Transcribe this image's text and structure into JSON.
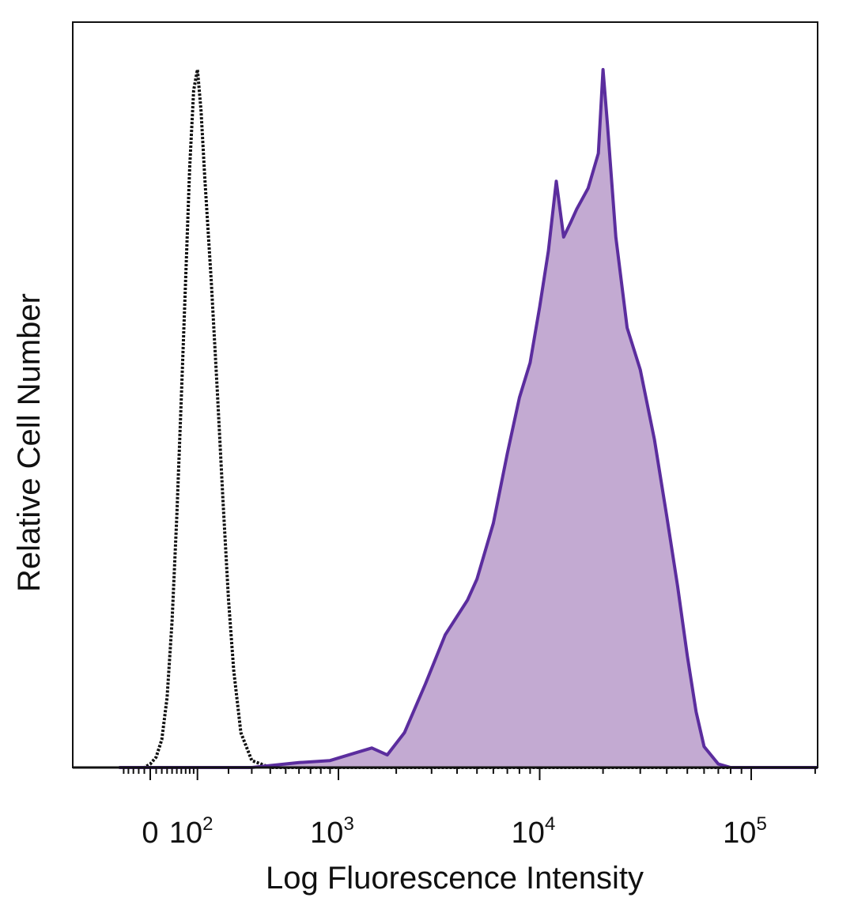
{
  "chart_data": {
    "type": "area",
    "title": "",
    "xlabel": "Log Fluorescence Intensity",
    "ylabel": "Relative Cell Number",
    "x_scale": "biexponential",
    "xlim": [
      -60,
      250000
    ],
    "ylim": [
      0,
      100
    ],
    "grid": false,
    "legend": "none",
    "x_ticks": [
      {
        "value": 0,
        "base": "0",
        "exp": ""
      },
      {
        "value": 100,
        "base": "10",
        "exp": "2"
      },
      {
        "value": 1000,
        "base": "10",
        "exp": "3"
      },
      {
        "value": 10000,
        "base": "10",
        "exp": "4"
      },
      {
        "value": 100000,
        "base": "10",
        "exp": "5"
      }
    ],
    "series": [
      {
        "style": "dotted-outline",
        "color": "#111111",
        "points": [
          [
            -60,
            0
          ],
          [
            -10,
            0
          ],
          [
            0,
            0.5
          ],
          [
            10,
            1.5
          ],
          [
            20,
            4
          ],
          [
            30,
            10
          ],
          [
            40,
            21
          ],
          [
            50,
            36
          ],
          [
            60,
            53
          ],
          [
            70,
            70
          ],
          [
            80,
            86
          ],
          [
            90,
            97
          ],
          [
            100,
            100
          ],
          [
            110,
            94
          ],
          [
            120,
            85
          ],
          [
            140,
            70
          ],
          [
            160,
            54
          ],
          [
            180,
            38
          ],
          [
            200,
            24
          ],
          [
            220,
            14
          ],
          [
            250,
            5
          ],
          [
            300,
            1
          ],
          [
            400,
            0
          ],
          [
            250000,
            0
          ]
        ]
      },
      {
        "style": "filled",
        "color": "#5b2d9e",
        "fill": "#c3aad2",
        "points": [
          [
            -60,
            0
          ],
          [
            300,
            0
          ],
          [
            600,
            0.7
          ],
          [
            900,
            1
          ],
          [
            1200,
            2
          ],
          [
            1500,
            2.8
          ],
          [
            1800,
            1.8
          ],
          [
            2200,
            5
          ],
          [
            2800,
            12
          ],
          [
            3500,
            19
          ],
          [
            4500,
            24
          ],
          [
            5000,
            27
          ],
          [
            6000,
            35
          ],
          [
            7000,
            45
          ],
          [
            8000,
            53
          ],
          [
            9000,
            58
          ],
          [
            10000,
            66
          ],
          [
            11000,
            74
          ],
          [
            12000,
            84
          ],
          [
            13000,
            76
          ],
          [
            14000,
            78
          ],
          [
            15000,
            80
          ],
          [
            17000,
            83
          ],
          [
            19000,
            88
          ],
          [
            20000,
            100
          ],
          [
            21000,
            92
          ],
          [
            23000,
            76
          ],
          [
            26000,
            63
          ],
          [
            30000,
            57
          ],
          [
            35000,
            47
          ],
          [
            40000,
            36
          ],
          [
            45000,
            26
          ],
          [
            50000,
            16
          ],
          [
            55000,
            8
          ],
          [
            60000,
            3
          ],
          [
            70000,
            0.5
          ],
          [
            80000,
            0
          ],
          [
            250000,
            0
          ]
        ]
      }
    ]
  }
}
